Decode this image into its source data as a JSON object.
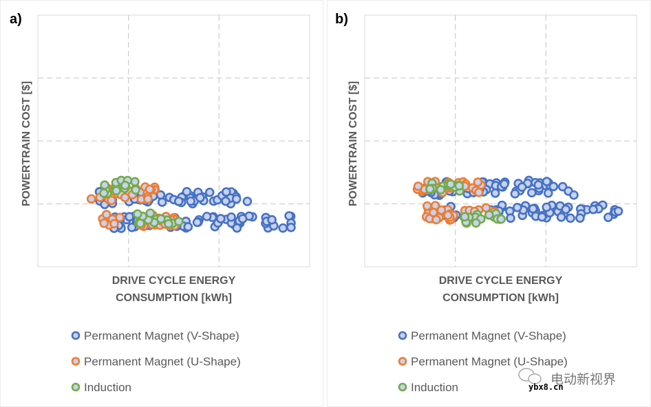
{
  "colors": {
    "Permanent Magnet (V-Shape)": "#4472C4",
    "Permanent Magnet (U-Shape)": "#ED7D31",
    "Induction": "#70AD47",
    "marker_fill": "#C9D1EE",
    "grid": "#D0D0D0",
    "axis_text": "#595959"
  },
  "watermark": {
    "text": "电动新视界",
    "site": "ybx8.cn"
  },
  "chart_data": [
    {
      "panel_label": "a)",
      "type": "scatter",
      "xlabel_line1": "DRIVE CYCLE ENERGY",
      "xlabel_line2": "CONSUMPTION [kWh]",
      "ylabel": "POWERTRAIN COST [$]",
      "xlim": [
        0,
        3
      ],
      "ylim": [
        0,
        4
      ],
      "grid": true,
      "x_gridlines": [
        1,
        2
      ],
      "y_gridlines": [
        1,
        2,
        3
      ],
      "tick_labels_shown": false,
      "legend": "bottom",
      "series": [
        {
          "name": "Permanent Magnet (V-Shape)",
          "clusters": [
            {
              "x": [
                0.68,
                2.32
              ],
              "y": [
                0.99,
                1.21
              ],
              "n": 60
            },
            {
              "x": [
                0.84,
                2.81
              ],
              "y": [
                0.61,
                0.81
              ],
              "n": 70
            }
          ]
        },
        {
          "name": "Permanent Magnet (U-Shape)",
          "clusters": [
            {
              "x": [
                0.59,
                1.33
              ],
              "y": [
                1.05,
                1.27
              ],
              "n": 30
            },
            {
              "x": [
                0.7,
                1.56
              ],
              "y": [
                0.64,
                0.84
              ],
              "n": 30
            }
          ]
        },
        {
          "name": "Induction",
          "clusters": [
            {
              "x": [
                0.72,
                1.1
              ],
              "y": [
                1.16,
                1.38
              ],
              "n": 14
            },
            {
              "x": [
                1.1,
                1.56
              ],
              "y": [
                0.68,
                0.87
              ],
              "n": 16
            }
          ]
        }
      ]
    },
    {
      "panel_label": "b)",
      "type": "scatter",
      "xlabel_line1": "DRIVE CYCLE ENERGY",
      "xlabel_line2": "CONSUMPTION [kWh]",
      "ylabel": "POWERTRAIN COST [$]",
      "xlim": [
        0,
        3
      ],
      "ylim": [
        0,
        4
      ],
      "grid": true,
      "x_gridlines": [
        1,
        2
      ],
      "y_gridlines": [
        1,
        2,
        3
      ],
      "tick_labels_shown": false,
      "legend": "bottom",
      "series": [
        {
          "name": "Permanent Magnet (V-Shape)",
          "clusters": [
            {
              "x": [
                0.62,
                2.32
              ],
              "y": [
                1.13,
                1.38
              ],
              "n": 60
            },
            {
              "x": [
                0.76,
                2.81
              ],
              "y": [
                0.77,
                0.98
              ],
              "n": 70
            }
          ]
        },
        {
          "name": "Permanent Magnet (U-Shape)",
          "clusters": [
            {
              "x": [
                0.58,
                1.33
              ],
              "y": [
                1.18,
                1.36
              ],
              "n": 30
            },
            {
              "x": [
                0.68,
                1.56
              ],
              "y": [
                0.74,
                0.98
              ],
              "n": 30
            }
          ]
        },
        {
          "name": "Induction",
          "clusters": [
            {
              "x": [
                0.72,
                1.06
              ],
              "y": [
                1.18,
                1.34
              ],
              "n": 14
            },
            {
              "x": [
                1.1,
                1.56
              ],
              "y": [
                0.69,
                0.87
              ],
              "n": 16
            }
          ]
        }
      ]
    }
  ]
}
